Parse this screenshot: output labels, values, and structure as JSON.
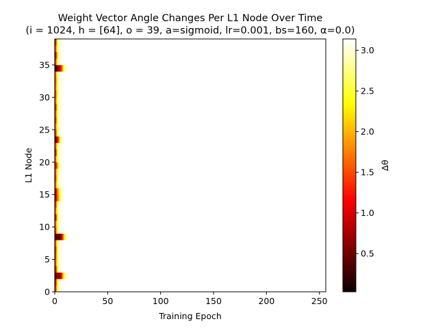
{
  "chart_data": {
    "type": "heatmap",
    "title": "Weight Vector Angle Changes Per L1 Node Over Time",
    "subtitle": "(i = 1024, h = [64], o = 39, a=sigmoid, lr=0.001, bs=160, α=0.0)",
    "xlabel": "Training Epoch",
    "ylabel": "L1 Node",
    "colorbar_label": "Δθ",
    "colormap": "hot",
    "xlim": [
      0,
      256
    ],
    "ylim": [
      0,
      39
    ],
    "clim": [
      0.03,
      3.14
    ],
    "x_ticks": [
      0,
      50,
      100,
      150,
      200,
      250
    ],
    "y_ticks": [
      0,
      5,
      10,
      15,
      20,
      25,
      30,
      35
    ],
    "colorbar_ticks": [
      0.5,
      1.0,
      1.5,
      2.0,
      2.5,
      3.0
    ],
    "x_tick_labels": [
      "0",
      "50",
      "100",
      "150",
      "200",
      "250"
    ],
    "y_tick_labels": [
      "0",
      "5",
      "10",
      "15",
      "20",
      "25",
      "30",
      "35"
    ],
    "colorbar_tick_labels": [
      "0.5",
      "1.0",
      "1.5",
      "2.0",
      "2.5",
      "3.0"
    ],
    "n_epochs": 256,
    "n_nodes": 39,
    "epoch_index_range": [
      0,
      25
    ],
    "later_epochs_value": 3.14,
    "nodes": [
      {
        "node": 0,
        "values": [
          0.9,
          1.8,
          2.5,
          2.8,
          3.0,
          3.05,
          3.1,
          3.12,
          3.13,
          3.14
        ]
      },
      {
        "node": 1,
        "values": [
          0.6,
          1.6,
          2.4,
          2.8,
          3.0,
          3.05,
          3.1,
          3.12,
          3.13,
          3.14
        ]
      },
      {
        "node": 2,
        "values": [
          0.25,
          0.5,
          0.8,
          0.5,
          0.6,
          0.9,
          1.2,
          1.9,
          2.3,
          2.7,
          2.9,
          3.05,
          3.1,
          3.12,
          3.13,
          3.14
        ]
      },
      {
        "node": 3,
        "values": [
          0.7,
          1.5,
          2.3,
          2.7,
          2.95,
          3.05,
          3.1,
          3.12,
          3.13,
          3.14
        ]
      },
      {
        "node": 4,
        "values": [
          1.2,
          2.0,
          2.6,
          2.85,
          3.0,
          3.05,
          3.1,
          3.12,
          3.13,
          3.14
        ]
      },
      {
        "node": 5,
        "values": [
          1.0,
          1.9,
          2.5,
          2.85,
          3.0,
          3.05,
          3.1,
          3.12,
          3.13,
          3.14
        ]
      },
      {
        "node": 6,
        "values": [
          0.8,
          1.8,
          2.5,
          2.85,
          3.0,
          3.05,
          3.1,
          3.12,
          3.13,
          3.14
        ]
      },
      {
        "node": 7,
        "values": [
          1.2,
          2.1,
          2.6,
          2.9,
          3.0,
          3.05,
          3.1,
          3.12,
          3.13,
          3.14
        ]
      },
      {
        "node": 8,
        "values": [
          0.3,
          0.35,
          0.45,
          0.5,
          0.4,
          0.6,
          0.9,
          1.4,
          2.0,
          2.5,
          2.8,
          3.0,
          3.08,
          3.12,
          3.13,
          3.14
        ]
      },
      {
        "node": 9,
        "values": [
          0.9,
          1.9,
          2.5,
          2.85,
          3.0,
          3.05,
          3.1,
          3.12,
          3.13,
          3.14
        ]
      },
      {
        "node": 10,
        "values": [
          1.3,
          2.1,
          2.6,
          2.9,
          3.0,
          3.05,
          3.1,
          3.12,
          3.13,
          3.14
        ]
      },
      {
        "node": 11,
        "values": [
          0.6,
          1.5,
          2.3,
          2.8,
          2.95,
          3.05,
          3.1,
          3.12,
          3.13,
          3.14
        ]
      },
      {
        "node": 12,
        "values": [
          1.3,
          2.1,
          2.6,
          2.9,
          3.0,
          3.05,
          3.1,
          3.12,
          3.13,
          3.14
        ]
      },
      {
        "node": 13,
        "values": [
          0.9,
          1.8,
          2.5,
          2.85,
          3.0,
          3.05,
          3.1,
          3.12,
          3.13,
          3.14
        ]
      },
      {
        "node": 14,
        "values": [
          0.5,
          1.0,
          1.6,
          1.9,
          2.3,
          2.7,
          2.9,
          3.05,
          3.1,
          3.12,
          3.13,
          3.14
        ]
      },
      {
        "node": 15,
        "values": [
          0.5,
          1.1,
          1.7,
          2.0,
          2.4,
          2.75,
          2.95,
          3.05,
          3.1,
          3.12,
          3.13,
          3.14
        ]
      },
      {
        "node": 16,
        "values": [
          1.3,
          2.1,
          2.6,
          2.9,
          3.0,
          3.05,
          3.1,
          3.12,
          3.13,
          3.14
        ]
      },
      {
        "node": 17,
        "values": [
          0.9,
          1.9,
          2.5,
          2.85,
          3.0,
          3.05,
          3.1,
          3.12,
          3.13,
          3.14
        ]
      },
      {
        "node": 18,
        "values": [
          1.2,
          2.0,
          2.6,
          2.9,
          3.0,
          3.05,
          3.1,
          3.12,
          3.13,
          3.14
        ]
      },
      {
        "node": 19,
        "values": [
          0.8,
          1.3,
          1.9,
          2.4,
          2.8,
          3.0,
          3.08,
          3.12,
          3.13,
          3.14
        ]
      },
      {
        "node": 20,
        "values": [
          1.3,
          2.1,
          2.6,
          2.9,
          3.0,
          3.05,
          3.1,
          3.12,
          3.13,
          3.14
        ]
      },
      {
        "node": 21,
        "values": [
          0.6,
          1.6,
          2.4,
          2.8,
          3.0,
          3.05,
          3.1,
          3.12,
          3.13,
          3.14
        ]
      },
      {
        "node": 22,
        "values": [
          1.2,
          2.0,
          2.6,
          2.9,
          3.0,
          3.05,
          3.1,
          3.12,
          3.13,
          3.14
        ]
      },
      {
        "node": 23,
        "values": [
          0.3,
          0.6,
          1.0,
          1.5,
          2.1,
          2.6,
          2.9,
          3.05,
          3.1,
          3.12,
          3.13,
          3.14
        ]
      },
      {
        "node": 24,
        "values": [
          0.9,
          1.8,
          2.5,
          2.85,
          3.0,
          3.05,
          3.1,
          3.12,
          3.13,
          3.14
        ]
      },
      {
        "node": 25,
        "values": [
          1.3,
          2.1,
          2.6,
          2.9,
          3.0,
          3.05,
          3.1,
          3.12,
          3.13,
          3.14
        ]
      },
      {
        "node": 26,
        "values": [
          0.8,
          1.8,
          2.5,
          2.85,
          3.0,
          3.05,
          3.1,
          3.12,
          3.13,
          3.14
        ]
      },
      {
        "node": 27,
        "values": [
          1.2,
          2.0,
          2.6,
          2.9,
          3.0,
          3.05,
          3.1,
          3.12,
          3.13,
          3.14
        ]
      },
      {
        "node": 28,
        "values": [
          0.7,
          1.7,
          2.4,
          2.8,
          3.0,
          3.05,
          3.1,
          3.12,
          3.13,
          3.14
        ]
      },
      {
        "node": 29,
        "values": [
          1.3,
          2.1,
          2.6,
          2.9,
          3.0,
          3.05,
          3.1,
          3.12,
          3.13,
          3.14
        ]
      },
      {
        "node": 30,
        "values": [
          1.0,
          1.9,
          2.5,
          2.85,
          3.0,
          3.05,
          3.1,
          3.12,
          3.13,
          3.14
        ]
      },
      {
        "node": 31,
        "values": [
          1.3,
          2.1,
          2.6,
          2.9,
          3.0,
          3.05,
          3.1,
          3.12,
          3.13,
          3.14
        ]
      },
      {
        "node": 32,
        "values": [
          1.2,
          2.0,
          2.6,
          2.9,
          3.0,
          3.05,
          3.1,
          3.12,
          3.13,
          3.14
        ]
      },
      {
        "node": 33,
        "values": [
          1.3,
          2.1,
          2.6,
          2.9,
          3.0,
          3.05,
          3.1,
          3.12,
          3.13,
          3.14
        ]
      },
      {
        "node": 34,
        "values": [
          0.2,
          0.3,
          0.5,
          0.7,
          0.9,
          1.1,
          1.5,
          2.0,
          2.5,
          2.8,
          3.0,
          3.08,
          3.12,
          3.13,
          3.14
        ]
      },
      {
        "node": 35,
        "values": [
          1.0,
          1.9,
          2.5,
          2.85,
          3.0,
          3.05,
          3.1,
          3.12,
          3.13,
          3.14
        ]
      },
      {
        "node": 36,
        "values": [
          0.5,
          1.4,
          2.2,
          2.7,
          2.95,
          3.05,
          3.1,
          3.12,
          3.13,
          3.14
        ]
      },
      {
        "node": 37,
        "values": [
          1.2,
          2.0,
          2.6,
          2.9,
          3.0,
          3.05,
          3.1,
          3.12,
          3.13,
          3.14
        ]
      },
      {
        "node": 38,
        "values": [
          0.7,
          1.7,
          2.4,
          2.8,
          3.0,
          3.05,
          3.1,
          3.12,
          3.13,
          3.14
        ]
      }
    ],
    "grid": false,
    "legend": "colorbar-right"
  }
}
